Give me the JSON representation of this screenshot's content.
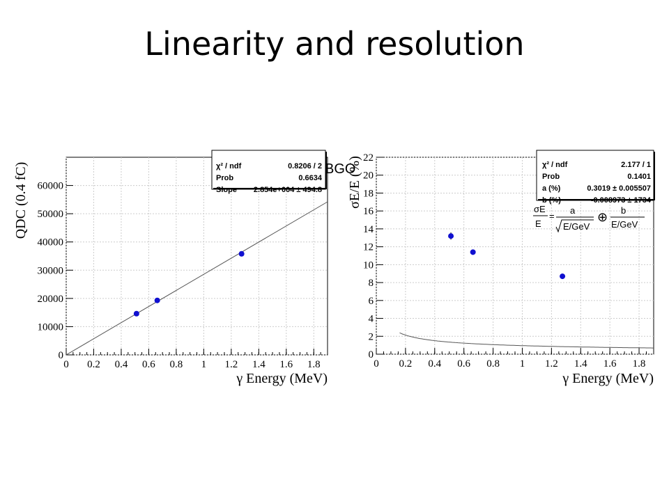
{
  "slide": {
    "title": "Linearity and resolution",
    "overlay_label": "BGO"
  },
  "chart_data": [
    {
      "type": "scatter",
      "ylabel": "QDC (0.4 fC)",
      "xlabel": "γ Energy (MeV)",
      "xlim": [
        0,
        1.9
      ],
      "ylim": [
        0,
        70000
      ],
      "xticks": [
        "0",
        "0.2",
        "0.4",
        "0.6",
        "0.8",
        "1",
        "1.2",
        "1.4",
        "1.6",
        "1.8"
      ],
      "yticks": [
        "0",
        "10000",
        "20000",
        "30000",
        "40000",
        "50000",
        "60000"
      ],
      "series": [
        {
          "x": [
            0.511,
            0.662,
            1.275
          ],
          "y": [
            14600,
            19300,
            35800
          ],
          "yerr": [
            400,
            400,
            900
          ],
          "color": "#1010d0"
        }
      ],
      "fit": {
        "type": "linear",
        "slope": 28540,
        "color": "#555555"
      },
      "stats": [
        {
          "label": "χ² / ndf",
          "value": "0.8206 / 2"
        },
        {
          "label": "Prob",
          "value": "0.6634"
        },
        {
          "label": "Slope",
          "value": "2.854e+004 ± 494.8"
        }
      ]
    },
    {
      "type": "scatter",
      "ylabel": "σE/E (%)",
      "xlabel": "γ Energy (MeV)",
      "xlim": [
        0,
        1.9
      ],
      "ylim": [
        0,
        22
      ],
      "xticks": [
        "0",
        "0.2",
        "0.4",
        "0.6",
        "0.8",
        "1",
        "1.2",
        "1.4",
        "1.6",
        "1.8"
      ],
      "yticks": [
        "0",
        "2",
        "4",
        "6",
        "8",
        "10",
        "12",
        "14",
        "16",
        "18",
        "20",
        "22"
      ],
      "series": [
        {
          "x": [
            0.511,
            0.662,
            1.275
          ],
          "y": [
            13.2,
            11.4,
            8.7
          ],
          "yerr": [
            0.4,
            0.3,
            0.3
          ],
          "color": "#1010d0"
        }
      ],
      "fit": {
        "type": "resolution",
        "a": 0.3019,
        "color": "#555555"
      },
      "stats": [
        {
          "label": "χ² / ndf",
          "value": "2.177 / 1"
        },
        {
          "label": "Prob",
          "value": "0.1401"
        },
        {
          "label": "a (%)",
          "value": "0.3019 ± 0.005507"
        },
        {
          "label": "b (%)",
          "value": "-0.008973 ± 1734"
        }
      ],
      "formula": {
        "lhs_num": "σE",
        "lhs_den": "E",
        "eq": "=",
        "t1_num": "a",
        "t1_den": "E/GeV",
        "op": "⊕",
        "t2_num": "b",
        "t2_den": "E/GeV"
      }
    }
  ]
}
